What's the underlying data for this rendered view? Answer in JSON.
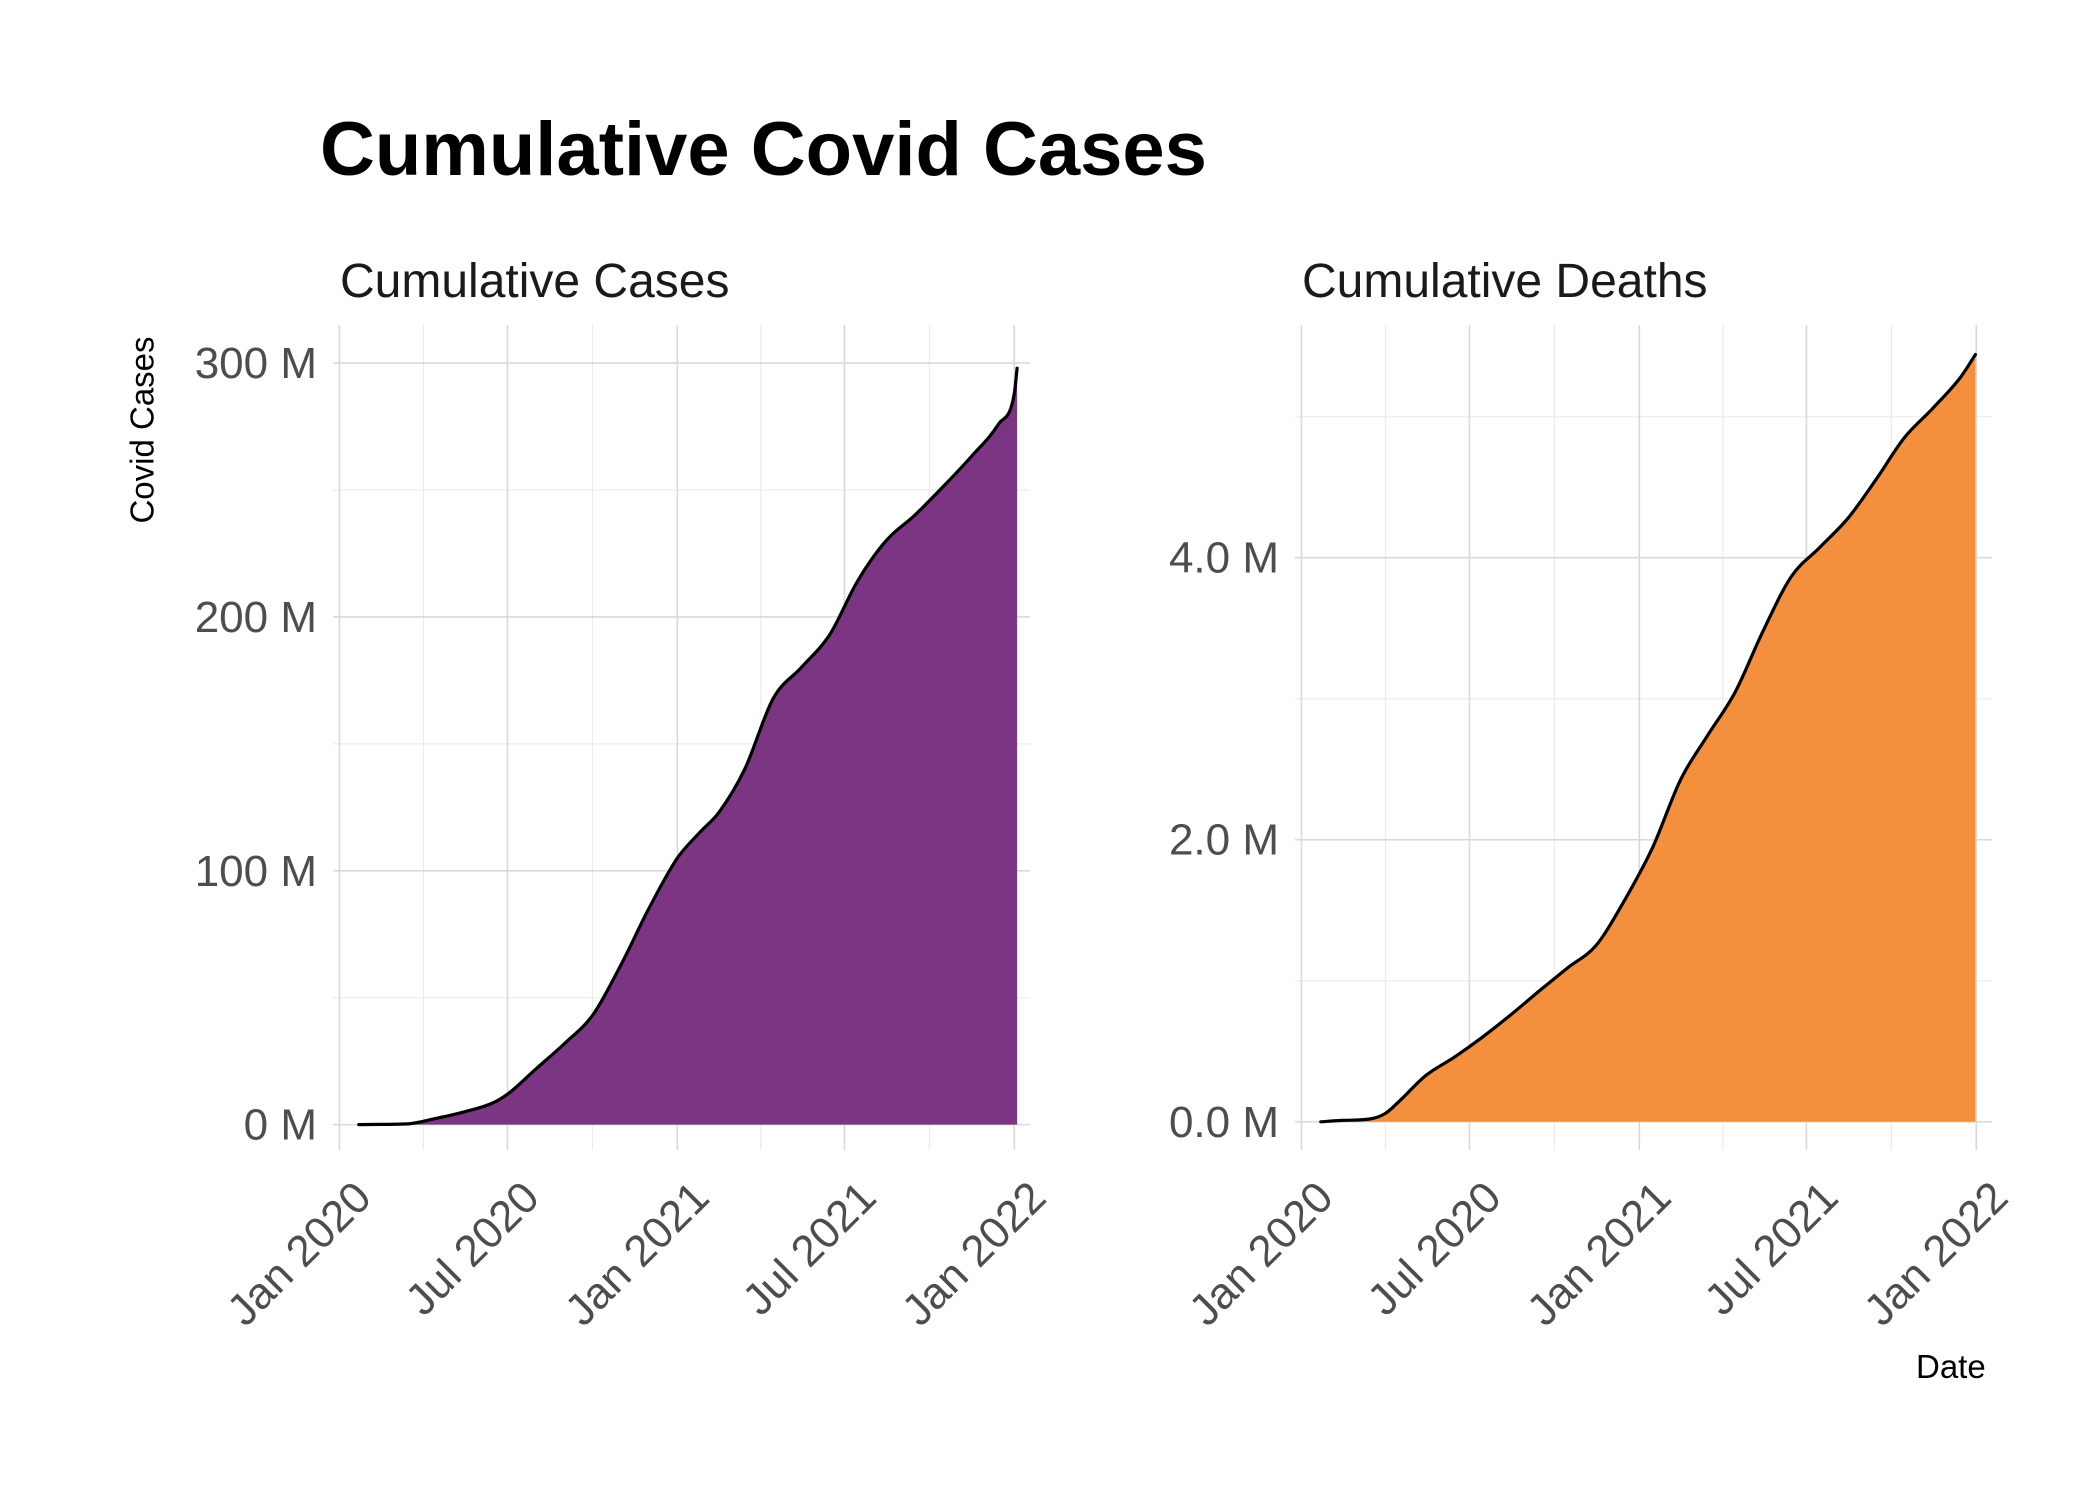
{
  "title": "Cumulative Covid Cases",
  "ylabel": "Covid Cases",
  "xlabel": "Date",
  "chart_data": [
    {
      "type": "area",
      "title": "Cumulative Cases",
      "color": "#7b3582",
      "line_color": "#000000",
      "x_ticks": [
        "Jan 2020",
        "Jul 2020",
        "Jan 2021",
        "Jul 2021",
        "Jan 2022"
      ],
      "x_range": [
        "2019-12-25",
        "2022-01-18"
      ],
      "y_ticks": [
        "0 M",
        "100 M",
        "200 M",
        "300 M"
      ],
      "y_tick_values": [
        0,
        100000000,
        200000000,
        300000000
      ],
      "ylim": [
        -10000000,
        315000000
      ],
      "grid": true,
      "x": [
        "2020-01-22",
        "2020-02-15",
        "2020-03-15",
        "2020-04-15",
        "2020-05-15",
        "2020-06-15",
        "2020-07-01",
        "2020-08-01",
        "2020-09-01",
        "2020-10-01",
        "2020-11-01",
        "2020-12-01",
        "2021-01-01",
        "2021-01-25",
        "2021-02-15",
        "2021-03-15",
        "2021-04-15",
        "2021-05-15",
        "2021-06-15",
        "2021-07-15",
        "2021-08-15",
        "2021-09-15",
        "2021-10-15",
        "2021-11-15",
        "2021-12-15",
        "2022-01-01",
        "2022-01-04"
      ],
      "y": [
        0,
        100000,
        300000,
        2500000,
        5000000,
        8500000,
        12000000,
        22000000,
        32000000,
        43000000,
        63000000,
        85000000,
        105000000,
        115000000,
        123000000,
        140000000,
        168000000,
        180000000,
        193000000,
        214000000,
        230000000,
        240000000,
        251000000,
        263000000,
        276000000,
        288000000,
        298000000
      ]
    },
    {
      "type": "area",
      "title": "Cumulative Deaths",
      "color": "#f48f3d",
      "line_color": "#000000",
      "x_ticks": [
        "Jan 2020",
        "Jul 2020",
        "Jan 2021",
        "Jul 2021",
        "Jan 2022"
      ],
      "x_range": [
        "2019-12-25",
        "2022-01-18"
      ],
      "y_ticks": [
        "0.0 M",
        "2.0 M",
        "4.0 M"
      ],
      "y_tick_values": [
        0,
        2000000,
        4000000
      ],
      "ylim": [
        -200000,
        5650000
      ],
      "grid": true,
      "x": [
        "2020-01-22",
        "2020-02-15",
        "2020-03-15",
        "2020-04-01",
        "2020-04-15",
        "2020-05-15",
        "2020-06-15",
        "2020-07-15",
        "2020-08-15",
        "2020-09-15",
        "2020-10-15",
        "2020-11-15",
        "2020-12-15",
        "2021-01-15",
        "2021-02-15",
        "2021-03-15",
        "2021-04-15",
        "2021-05-15",
        "2021-06-15",
        "2021-07-15",
        "2021-08-15",
        "2021-09-15",
        "2021-10-15",
        "2021-11-15",
        "2021-12-15",
        "2021-12-31"
      ],
      "y": [
        0,
        10000,
        20000,
        60000,
        140000,
        330000,
        460000,
        600000,
        760000,
        930000,
        1090000,
        1250000,
        1560000,
        1940000,
        2430000,
        2730000,
        3050000,
        3480000,
        3870000,
        4070000,
        4280000,
        4560000,
        4850000,
        5060000,
        5280000,
        5440000
      ]
    }
  ]
}
